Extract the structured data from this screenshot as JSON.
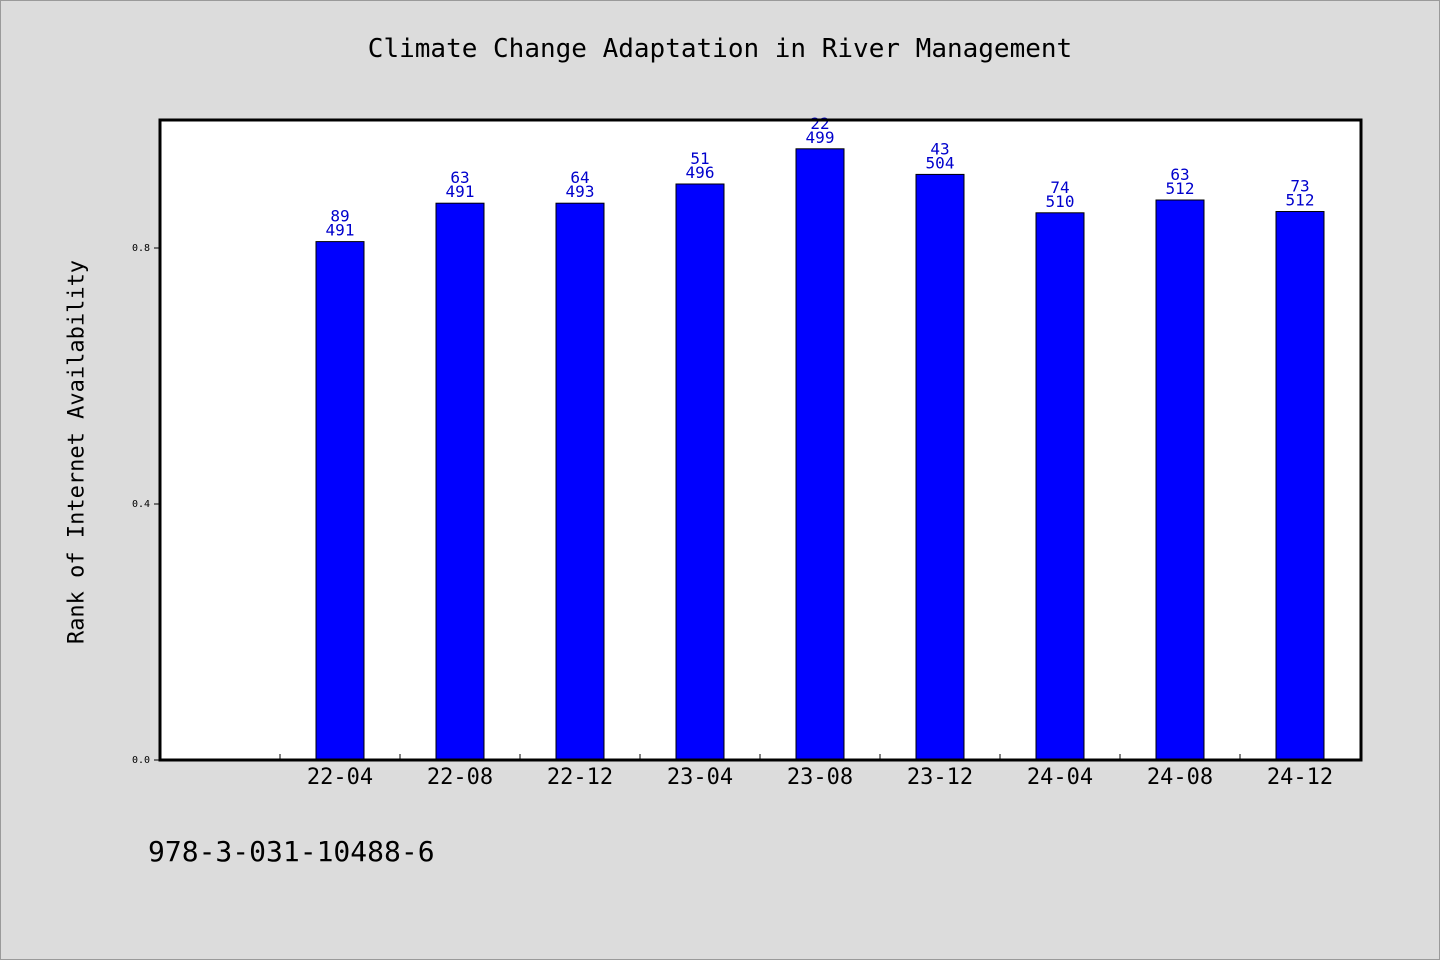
{
  "chart_data": {
    "type": "bar",
    "title": "Climate Change Adaptation in River Management",
    "ylabel": "Rank of Internet Availability",
    "xlabel": "",
    "categories": [
      "22-04",
      "22-08",
      "22-12",
      "23-04",
      "23-08",
      "23-12",
      "24-04",
      "24-08",
      "24-12"
    ],
    "values": [
      0.81,
      0.87,
      0.87,
      0.9,
      0.955,
      0.915,
      0.855,
      0.875,
      0.857
    ],
    "labels_top": [
      "89",
      "63",
      "64",
      "51",
      "22",
      "43",
      "74",
      "63",
      "73"
    ],
    "labels_bottom": [
      "491",
      "491",
      "493",
      "496",
      "499",
      "504",
      "510",
      "512",
      "512"
    ],
    "yticks": [
      "0.0",
      "0.4",
      "0.8"
    ],
    "ylim": [
      0,
      1.0
    ],
    "grid": false,
    "bar_color": "#0000ff",
    "label_color": "#0000cc"
  },
  "footer_text": "978-3-031-10488-6"
}
